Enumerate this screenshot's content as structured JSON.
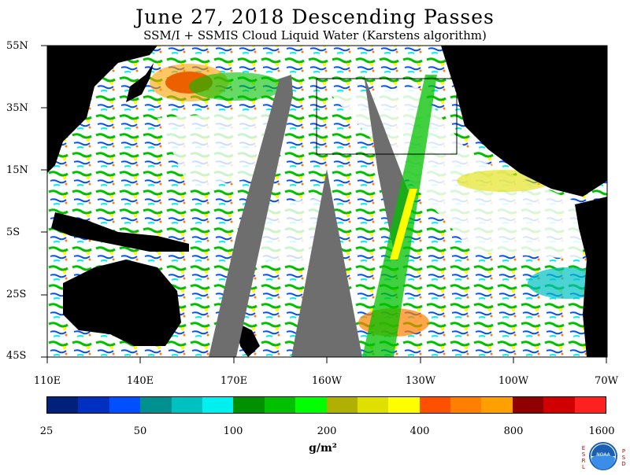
{
  "title": "June 27, 2018  Descending Passes",
  "subtitle": "SSM/I + SSMIS Cloud Liquid Water (Karstens algorithm)",
  "lat_labels": [
    "55N",
    "35N",
    "15N",
    "5S",
    "25S",
    "45S"
  ],
  "lon_labels": [
    "110E",
    "140E",
    "170E",
    "160W",
    "130W",
    "100W",
    "70W"
  ],
  "colorbar": {
    "colors": [
      "#00207a",
      "#0030c0",
      "#0050ff",
      "#009090",
      "#00c0c0",
      "#00f0f0",
      "#009000",
      "#00c000",
      "#00ff00",
      "#b0b000",
      "#e0e000",
      "#ffff00",
      "#ff5000",
      "#ff8000",
      "#ffa000",
      "#900000",
      "#d00000",
      "#ff2020"
    ],
    "tick_labels": [
      "25",
      "50",
      "100",
      "200",
      "400",
      "800",
      "1600"
    ]
  },
  "units": "g/m²",
  "logo": {
    "left_text": "ESRL",
    "right_text": "PSD",
    "name": "NOAA"
  },
  "colors": {
    "land": "#000000",
    "no_data": "#6e6e6e",
    "ocean_clear": "#ffffff"
  }
}
